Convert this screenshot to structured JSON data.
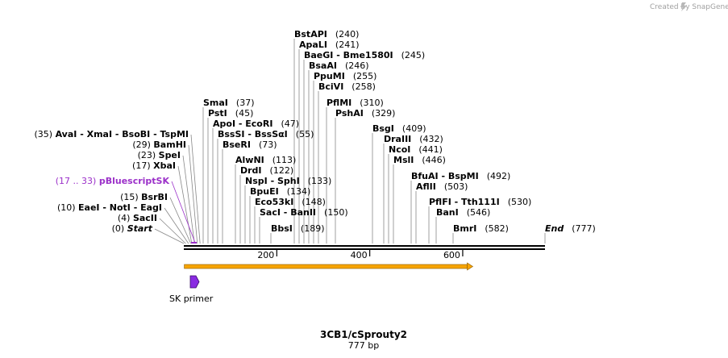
{
  "watermark": "Created by SnapGene",
  "map": {
    "title": "3CB1/cSprouty2",
    "length_label": "777 bp",
    "total_bp": 777
  },
  "ruler_ticks": [
    {
      "pos": 200,
      "label": "200"
    },
    {
      "pos": 400,
      "label": "400"
    },
    {
      "pos": 600,
      "label": "600"
    }
  ],
  "features": {
    "orf": {
      "start": 1,
      "end": 620,
      "color": "#f7a400"
    },
    "primer": {
      "name": "SK primer",
      "color": "#8a2be2"
    }
  },
  "sites": [
    {
      "id": "bstapi",
      "names": [
        "BstAPI"
      ],
      "pos": "(240)",
      "bp": 240
    },
    {
      "id": "apali",
      "names": [
        "ApaLI"
      ],
      "pos": "(241)",
      "bp": 241
    },
    {
      "id": "baegi",
      "names": [
        "BaeGI",
        "Bme1580I"
      ],
      "pos": "(245)",
      "bp": 245
    },
    {
      "id": "bsaai",
      "names": [
        "BsaAI"
      ],
      "pos": "(246)",
      "bp": 246
    },
    {
      "id": "ppumi",
      "names": [
        "PpuMI"
      ],
      "pos": "(255)",
      "bp": 255
    },
    {
      "id": "bcivi",
      "names": [
        "BciVI"
      ],
      "pos": "(258)",
      "bp": 258
    },
    {
      "id": "smai",
      "names": [
        "SmaI"
      ],
      "pos": "(37)",
      "bp": 37
    },
    {
      "id": "psti",
      "names": [
        "PstI"
      ],
      "pos": "(45)",
      "bp": 45
    },
    {
      "id": "apoi",
      "names": [
        "ApoI",
        "EcoRI"
      ],
      "pos": "(47)",
      "bp": 47
    },
    {
      "id": "bsssi",
      "names": [
        "BssSI",
        "BssSαI"
      ],
      "pos": "(55)",
      "bp": 55
    },
    {
      "id": "bseri",
      "names": [
        "BseRI"
      ],
      "pos": "(73)",
      "bp": 73
    },
    {
      "id": "alwni",
      "names": [
        "AlwNI"
      ],
      "pos": "(113)",
      "bp": 113
    },
    {
      "id": "drdi",
      "names": [
        "DrdI"
      ],
      "pos": "(122)",
      "bp": 122
    },
    {
      "id": "nspi",
      "names": [
        "NspI",
        "SphI"
      ],
      "pos": "(133)",
      "bp": 133
    },
    {
      "id": "bpuei",
      "names": [
        "BpuEI"
      ],
      "pos": "(134)",
      "bp": 134
    },
    {
      "id": "eco53ki",
      "names": [
        "Eco53kI"
      ],
      "pos": "(148)",
      "bp": 148
    },
    {
      "id": "saci",
      "names": [
        "SacI",
        "BanII"
      ],
      "pos": "(150)",
      "bp": 150
    },
    {
      "id": "bbsi",
      "names": [
        "BbsI"
      ],
      "pos": "(189)",
      "bp": 189
    },
    {
      "id": "pflmi",
      "names": [
        "PflMI"
      ],
      "pos": "(310)",
      "bp": 310
    },
    {
      "id": "pshai",
      "names": [
        "PshAI"
      ],
      "pos": "(329)",
      "bp": 329
    },
    {
      "id": "bsgi",
      "names": [
        "BsgI"
      ],
      "pos": "(409)",
      "bp": 409
    },
    {
      "id": "draiii",
      "names": [
        "DraIII"
      ],
      "pos": "(432)",
      "bp": 432
    },
    {
      "id": "ncoi",
      "names": [
        "NcoI"
      ],
      "pos": "(441)",
      "bp": 441
    },
    {
      "id": "msli",
      "names": [
        "MslI"
      ],
      "pos": "(446)",
      "bp": 446
    },
    {
      "id": "bfuai",
      "names": [
        "BfuAI",
        "BspMI"
      ],
      "pos": "(492)",
      "bp": 492
    },
    {
      "id": "aflii",
      "names": [
        "AflII"
      ],
      "pos": "(503)",
      "bp": 503
    },
    {
      "id": "pflfi",
      "names": [
        "PflFI",
        "Tth111I"
      ],
      "pos": "(530)",
      "bp": 530
    },
    {
      "id": "bani",
      "names": [
        "BanI"
      ],
      "pos": "(546)",
      "bp": 546
    },
    {
      "id": "bmri",
      "names": [
        "BmrI"
      ],
      "pos": "(582)",
      "bp": 582
    },
    {
      "id": "end",
      "names": [
        "End"
      ],
      "pos": "(777)",
      "bp": 777,
      "italic": true
    },
    {
      "id": "ava",
      "names": [
        "AvaI",
        "XmaI",
        "BsoBI",
        "TspMI"
      ],
      "pos": "(35)",
      "bp": 35,
      "left": true
    },
    {
      "id": "bamhi",
      "names": [
        "BamHI"
      ],
      "pos": "(29)",
      "bp": 29,
      "left": true
    },
    {
      "id": "spei",
      "names": [
        "SpeI"
      ],
      "pos": "(23)",
      "bp": 23,
      "left": true
    },
    {
      "id": "xbai",
      "names": [
        "XbaI"
      ],
      "pos": "(17)",
      "bp": 17,
      "left": true
    },
    {
      "id": "pblue",
      "names": [
        "pBluescriptSK"
      ],
      "pos": "(17 .. 33)",
      "bp": 25,
      "left": true,
      "feature": true
    },
    {
      "id": "bsrbi",
      "names": [
        "BsrBI"
      ],
      "pos": "(15)",
      "bp": 15,
      "left": true
    },
    {
      "id": "eaei",
      "names": [
        "EaeI",
        "NotI",
        "EagI"
      ],
      "pos": "(10)",
      "bp": 10,
      "left": true
    },
    {
      "id": "sacii",
      "names": [
        "SacII"
      ],
      "pos": "(4)",
      "bp": 4,
      "left": true
    },
    {
      "id": "start",
      "names": [
        "Start"
      ],
      "pos": "(0)",
      "bp": 0,
      "left": true,
      "italic": true
    }
  ]
}
